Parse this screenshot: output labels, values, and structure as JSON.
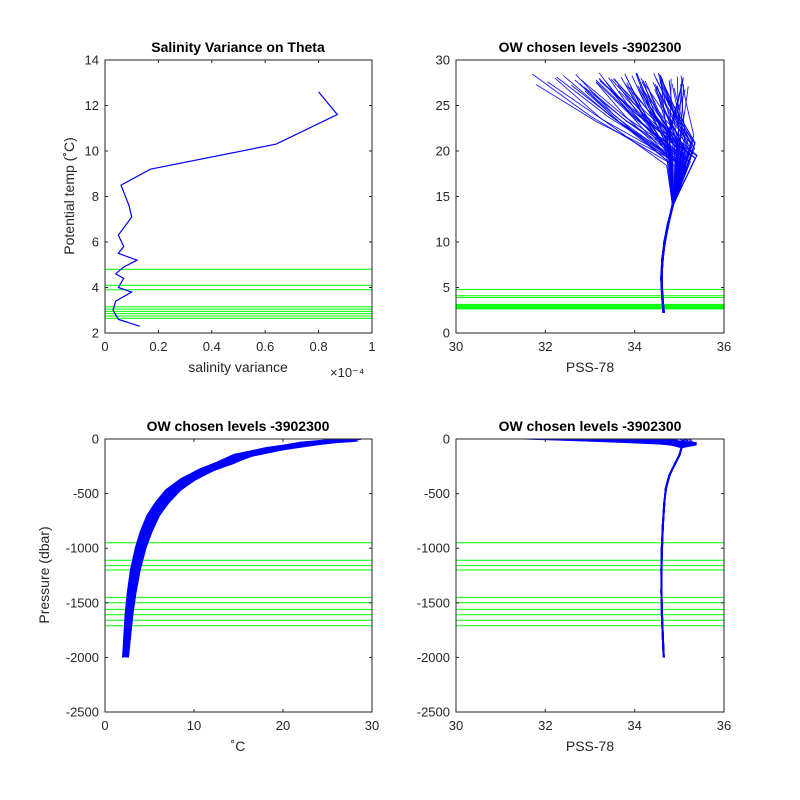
{
  "figure": {
    "background": "#ffffff",
    "axes_color": "#262626",
    "profile_color": "#0000ff",
    "level_color": "#00ff00"
  },
  "chart_data": [
    {
      "type": "line",
      "title": "Salinity Variance on Theta",
      "xlabel": "salinity variance",
      "ylabel": "Potential temp (˚C)",
      "x_exponent_label": "×10⁻⁴",
      "xlim": [
        0,
        1
      ],
      "ylim": [
        2,
        14
      ],
      "xticks": [
        0,
        0.2,
        0.4,
        0.6,
        0.8,
        1
      ],
      "xtick_labels": [
        "0",
        "0.2",
        "0.4",
        "0.6",
        "0.8",
        "1"
      ],
      "yticks": [
        2,
        4,
        6,
        8,
        10,
        12,
        14
      ],
      "ytick_labels": [
        "2",
        "4",
        "6",
        "8",
        "10",
        "12",
        "14"
      ],
      "x_scale_note": "x values in units of 1e-4",
      "series": [
        {
          "color": "#0000ff",
          "x": [
            0.8,
            0.87,
            0.64,
            0.17,
            0.06,
            0.09,
            0.1,
            0.05,
            0.07,
            0.05,
            0.12,
            0.07,
            0.04,
            0.07,
            0.05,
            0.1,
            0.04,
            0.03,
            0.05,
            0.13
          ],
          "y": [
            12.6,
            11.6,
            10.3,
            9.2,
            8.5,
            7.6,
            7.1,
            6.3,
            5.8,
            5.5,
            5.2,
            4.9,
            4.6,
            4.4,
            4.0,
            3.8,
            3.4,
            3.0,
            2.6,
            2.3
          ]
        }
      ],
      "hlines": [
        4.8,
        4.1,
        3.9,
        3.15,
        3.05,
        2.95,
        2.85,
        2.75,
        2.65
      ]
    },
    {
      "type": "line",
      "title": "OW chosen levels -3902300",
      "xlabel": "PSS-78",
      "ylabel": "",
      "xlim": [
        30,
        36
      ],
      "ylim": [
        0,
        30
      ],
      "xticks": [
        30,
        32,
        34,
        36
      ],
      "xtick_labels": [
        "30",
        "32",
        "34",
        "36"
      ],
      "yticks": [
        0,
        5,
        10,
        15,
        20,
        25,
        30
      ],
      "ytick_labels": [
        "0",
        "5",
        "10",
        "15",
        "20",
        "25",
        "30"
      ],
      "profile_family": {
        "color": "#0000ff",
        "deep_path": {
          "x": [
            34.65,
            34.62,
            34.6,
            34.62,
            34.67,
            34.75,
            34.85
          ],
          "y": [
            2.2,
            4.0,
            6.0,
            8.0,
            10.0,
            12.0,
            14.0
          ]
        },
        "surface_temp_range": [
          26.6,
          28.6
        ],
        "surface_salinity_range": [
          30.8,
          35.2
        ],
        "mid_salinity_range": [
          34.7,
          35.4
        ]
      },
      "hlines": [
        4.8,
        4.1,
        3.9,
        3.15,
        3.05,
        2.95,
        2.85,
        2.75,
        2.65
      ]
    },
    {
      "type": "line",
      "title": "OW chosen levels -3902300",
      "xlabel": "˚C",
      "ylabel": "Pressure (dbar)",
      "xlim": [
        0,
        30
      ],
      "ylim": [
        -2500,
        0
      ],
      "xticks": [
        0,
        10,
        20,
        30
      ],
      "xtick_labels": [
        "0",
        "10",
        "20",
        "30"
      ],
      "yticks": [
        -2500,
        -2000,
        -1500,
        -1000,
        -500,
        0
      ],
      "ytick_labels": [
        "-2500",
        "-2000",
        "-1500",
        "-1000",
        "-500",
        "0"
      ],
      "profile_family": {
        "color": "#0000ff",
        "x": [
          2.3,
          2.5,
          2.7,
          3.0,
          3.4,
          4.0,
          4.6,
          5.4,
          6.4,
          7.6,
          9.3,
          11.5,
          13.5,
          15.5,
          19.0,
          23.0,
          27.0
        ],
        "y": [
          -2000,
          -1800,
          -1600,
          -1400,
          -1200,
          -1000,
          -850,
          -700,
          -580,
          -470,
          -370,
          -280,
          -220,
          -150,
          -90,
          -40,
          -10
        ],
        "x_spread": 0.6,
        "surface_temp_range": [
          26.6,
          28.8
        ]
      },
      "hlines": [
        -950,
        -1110,
        -1160,
        -1200,
        -1450,
        -1500,
        -1560,
        -1610,
        -1660,
        -1710
      ]
    },
    {
      "type": "line",
      "title": "OW chosen levels -3902300",
      "xlabel": "PSS-78",
      "ylabel": "",
      "xlim": [
        30,
        36
      ],
      "ylim": [
        -2500,
        0
      ],
      "xticks": [
        30,
        32,
        34,
        36
      ],
      "xtick_labels": [
        "30",
        "32",
        "34",
        "36"
      ],
      "yticks": [
        -2500,
        -2000,
        -1500,
        -1000,
        -500,
        0
      ],
      "ytick_labels": [
        "-2500",
        "-2000",
        "-1500",
        "-1000",
        "-500",
        "0"
      ],
      "profile_family": {
        "color": "#0000ff",
        "x": [
          34.65,
          34.63,
          34.61,
          34.6,
          34.6,
          34.61,
          34.63,
          34.66,
          34.7,
          34.78,
          34.9,
          35.0,
          35.05
        ],
        "y": [
          -2000,
          -1800,
          -1600,
          -1400,
          -1200,
          -1000,
          -800,
          -600,
          -450,
          -330,
          -230,
          -150,
          -80
        ],
        "surface_salinity_range": [
          30.8,
          35.3
        ],
        "mid_salinity_range": [
          34.8,
          35.4
        ]
      },
      "hlines": [
        -950,
        -1110,
        -1160,
        -1200,
        -1450,
        -1500,
        -1560,
        -1610,
        -1660,
        -1710
      ]
    }
  ]
}
